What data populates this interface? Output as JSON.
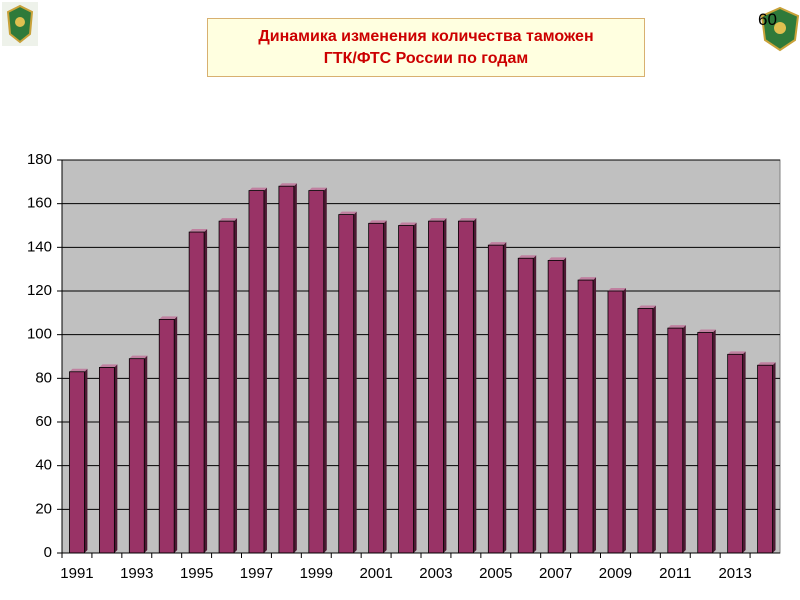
{
  "slide_number": "60",
  "chart_data": {
    "type": "bar",
    "title": "Динамика изменения количества таможен\nГТК/ФТС России по годам",
    "categories": [
      "1991",
      null,
      "1993",
      null,
      "1995",
      null,
      "1997",
      null,
      "1999",
      null,
      "2001",
      null,
      "2003",
      null,
      "2005",
      null,
      "2007",
      null,
      "2009",
      null,
      "2011",
      null,
      "2013",
      null
    ],
    "values": [
      83,
      85,
      89,
      107,
      147,
      152,
      166,
      168,
      166,
      155,
      151,
      150,
      152,
      152,
      141,
      135,
      134,
      125,
      120,
      112,
      103,
      101,
      91,
      86
    ],
    "color": "#993366",
    "ylim": [
      0,
      180
    ],
    "yticks": [
      0,
      20,
      40,
      60,
      80,
      100,
      120,
      140,
      160,
      180
    ],
    "grid": true
  }
}
